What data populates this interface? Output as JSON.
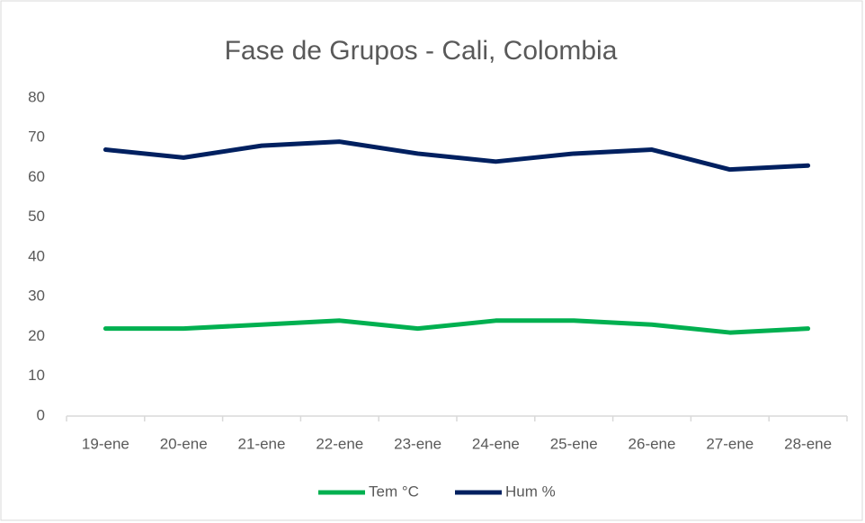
{
  "chart_data": {
    "type": "line",
    "title": "Fase de Grupos - Cali, Colombia",
    "categories": [
      "19-ene",
      "20-ene",
      "21-ene",
      "22-ene",
      "23-ene",
      "24-ene",
      "25-ene",
      "26-ene",
      "27-ene",
      "28-ene"
    ],
    "series": [
      {
        "name": "Tem °C",
        "color": "#00b050",
        "values": [
          22,
          22,
          23,
          24,
          22,
          24,
          24,
          23,
          21,
          22
        ]
      },
      {
        "name": "Hum %",
        "color": "#002060",
        "values": [
          67,
          65,
          68,
          69,
          66,
          64,
          66,
          67,
          62,
          63
        ]
      }
    ],
    "ylim": [
      0,
      80
    ],
    "yticks": [
      0,
      10,
      20,
      30,
      40,
      50,
      60,
      70,
      80
    ],
    "grid": false,
    "legend": "bottom"
  }
}
